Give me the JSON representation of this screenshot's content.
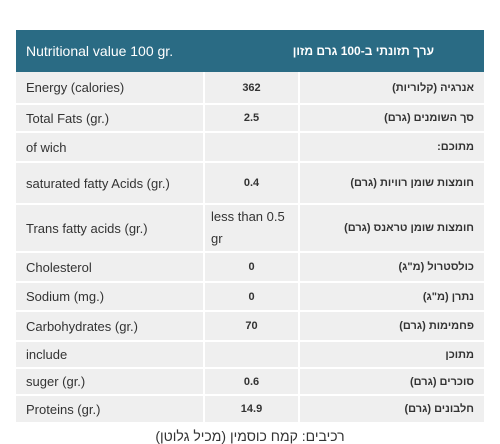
{
  "header": {
    "english": "Nutritional value 100 gr.",
    "hebrew": "ערך תזונתי ב-100 גרם מזון"
  },
  "rows": [
    {
      "english": "Energy (calories)",
      "value": "362",
      "hebrew": "אנרגיה (קלוריות)"
    },
    {
      "english": "Total Fats (gr.)",
      "value": "2.5",
      "hebrew": "סך השומנים (גרם)"
    },
    {
      "english": "of wich",
      "hebrew": "מתוכם:"
    },
    {
      "english": "saturated fatty Acids (gr.)",
      "value": "0.4",
      "hebrew": "חומצות שומן רוויות (גרם)"
    },
    {
      "english": "Trans fatty acids (gr.)",
      "value": "less than 0.5 gr",
      "hebrew": "חומצות שומן טראנס (גרם)"
    },
    {
      "english": "Cholesterol",
      "value": "0",
      "hebrew": "כולסטרול (מ\"ג)"
    },
    {
      "english": "Sodium (mg.)",
      "value": "0",
      "hebrew": "נתרן (מ\"ג)"
    },
    {
      "english": "Carbohydrates (gr.)",
      "value": "70",
      "hebrew": "פחמימות (גרם)"
    },
    {
      "english": "include",
      "hebrew": "מתוכן"
    },
    {
      "english": "suger (gr.)",
      "value": "0.6",
      "hebrew": "סוכרים (גרם)"
    },
    {
      "english": "Proteins (gr.)",
      "value": "14.9",
      "hebrew": "חלבונים (גרם)"
    }
  ],
  "footer": "רכיבים: קמח כוסמין (מכיל גלוטן)"
}
